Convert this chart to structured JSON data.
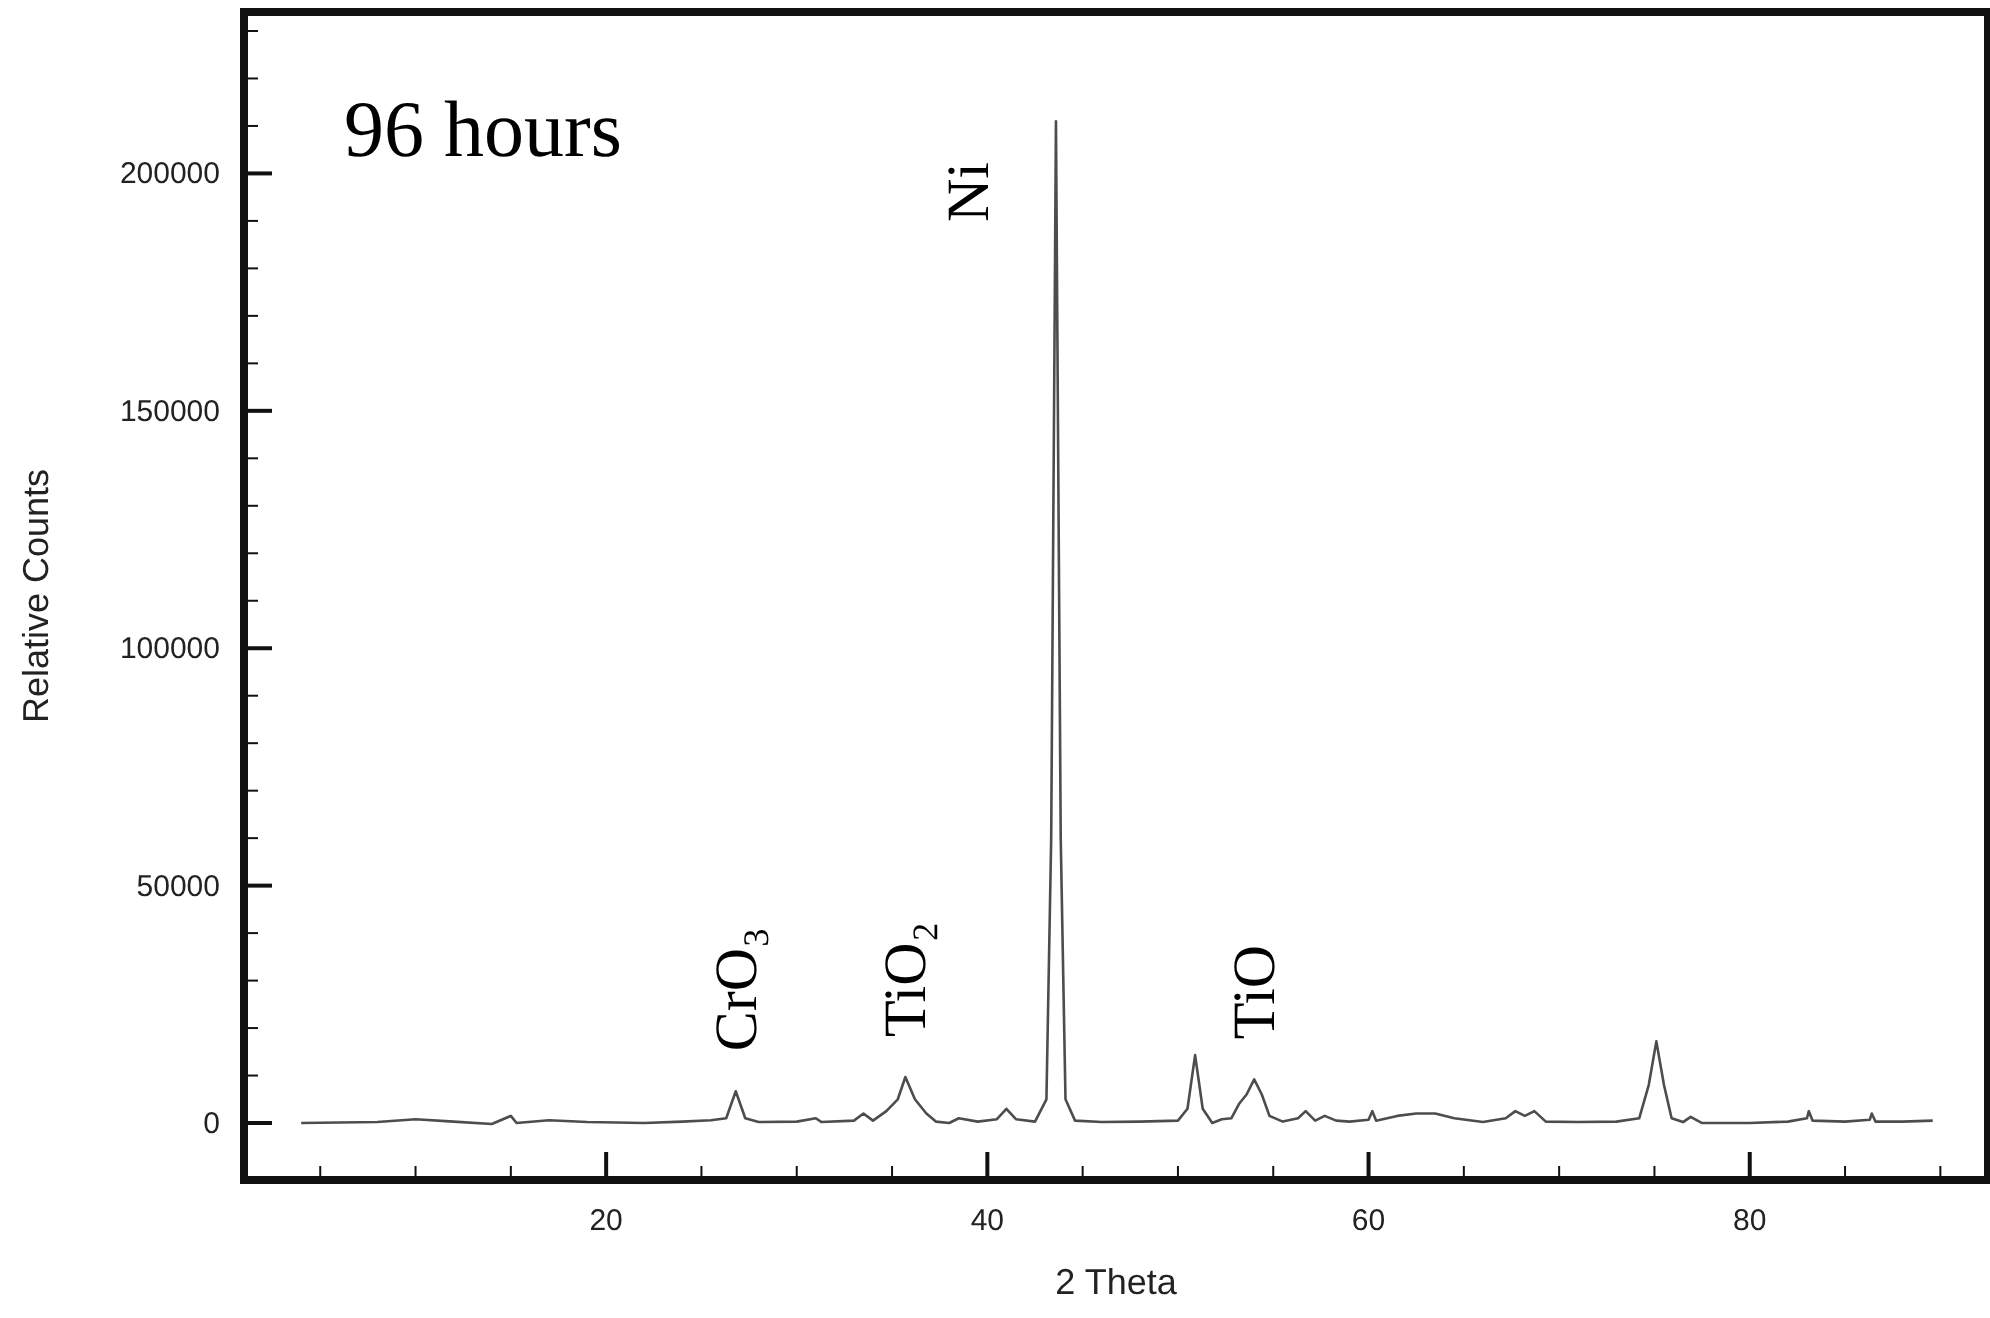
{
  "chart_data": {
    "type": "line",
    "title": "96 hours",
    "xlabel": "2 Theta",
    "ylabel": "Relative Counts",
    "xlim": [
      1,
      92.5
    ],
    "ylim": [
      -12000,
      234000
    ],
    "xticks": [
      {
        "value": 5,
        "label": null
      },
      {
        "value": 10,
        "label": null
      },
      {
        "value": 15,
        "label": null
      },
      20,
      {
        "value": 25,
        "label": null
      },
      {
        "value": 30,
        "label": null
      },
      {
        "value": 35,
        "label": null
      },
      40,
      {
        "value": 45,
        "label": null
      },
      {
        "value": 50,
        "label": null
      },
      {
        "value": 55,
        "label": null
      },
      60,
      {
        "value": 65,
        "label": null
      },
      {
        "value": 70,
        "label": null
      },
      {
        "value": 75,
        "label": null
      },
      80,
      {
        "value": 85,
        "label": null
      },
      {
        "value": 90,
        "label": null
      }
    ],
    "yticks": [
      0,
      {
        "value": 10000,
        "label": null
      },
      {
        "value": 20000,
        "label": null
      },
      {
        "value": 30000,
        "label": null
      },
      {
        "value": 40000,
        "label": null
      },
      50000,
      {
        "value": 60000,
        "label": null
      },
      {
        "value": 70000,
        "label": null
      },
      {
        "value": 80000,
        "label": null
      },
      {
        "value": 90000,
        "label": null
      },
      100000,
      {
        "value": 110000,
        "label": null
      },
      {
        "value": 120000,
        "label": null
      },
      {
        "value": 130000,
        "label": null
      },
      {
        "value": 140000,
        "label": null
      },
      150000,
      {
        "value": 160000,
        "label": null
      },
      {
        "value": 170000,
        "label": null
      },
      {
        "value": 180000,
        "label": null
      },
      {
        "value": 190000,
        "label": null
      },
      200000,
      {
        "value": 210000,
        "label": null
      },
      {
        "value": 220000,
        "label": null
      },
      {
        "value": 230000,
        "label": null
      }
    ],
    "grid": false,
    "annotations": [
      {
        "text": "CrO₃",
        "x": 26.8,
        "y": 6700
      },
      {
        "text": "TiO₂",
        "x": 35.7,
        "y": 9700
      },
      {
        "text": "Ni",
        "x": 43.6,
        "y": 211000
      },
      {
        "text": "TiO",
        "x": 54,
        "y": 9200
      }
    ],
    "series": [
      {
        "color": "#4d4d4d",
        "x": [
          4,
          8,
          10,
          12,
          14,
          15,
          15.3,
          17,
          19,
          22,
          24,
          25.5,
          26.3,
          26.8,
          27.3,
          28,
          30,
          31,
          31.3,
          33,
          33.5,
          34,
          34.7,
          35.3,
          35.7,
          36.2,
          36.8,
          37.3,
          38,
          38.5,
          39.5,
          40.5,
          41,
          41.5,
          42.5,
          43.1,
          43.35,
          43.6,
          43.85,
          44.1,
          44.6,
          46,
          48,
          50,
          50.5,
          50.9,
          51.3,
          51.8,
          52.3,
          52.8,
          53.2,
          53.6,
          54,
          54.4,
          54.8,
          55.5,
          56.3,
          56.7,
          57.2,
          57.7,
          58.3,
          59,
          60,
          60.2,
          60.4,
          61.5,
          62.5,
          63.5,
          64.5,
          66,
          67.2,
          67.7,
          68.2,
          68.7,
          69.3,
          71,
          73,
          74.2,
          74.7,
          75.1,
          75.5,
          75.9,
          76.5,
          76.9,
          77.5,
          80,
          82,
          83,
          83.1,
          83.3,
          85,
          86.3,
          86.4,
          86.6,
          88,
          89.6
        ],
        "values": [
          0,
          200,
          800,
          300,
          -200,
          1500,
          0,
          600,
          200,
          0,
          300,
          600,
          1000,
          6700,
          1000,
          200,
          300,
          1000,
          200,
          500,
          2000,
          500,
          2500,
          5000,
          9700,
          5000,
          2000,
          300,
          0,
          1000,
          300,
          800,
          3000,
          800,
          300,
          5000,
          60000,
          211000,
          60000,
          5000,
          500,
          200,
          300,
          500,
          3000,
          14300,
          3000,
          0,
          800,
          1000,
          4000,
          6000,
          9200,
          6000,
          1500,
          300,
          1000,
          2500,
          500,
          1500,
          500,
          300,
          700,
          2500,
          500,
          1500,
          2000,
          2000,
          1000,
          200,
          1000,
          2500,
          1500,
          2500,
          300,
          200,
          300,
          1000,
          8000,
          17200,
          8000,
          1000,
          200,
          1300,
          0,
          0,
          300,
          1000,
          2500,
          500,
          300,
          700,
          2000,
          300,
          300,
          500
        ]
      }
    ]
  }
}
